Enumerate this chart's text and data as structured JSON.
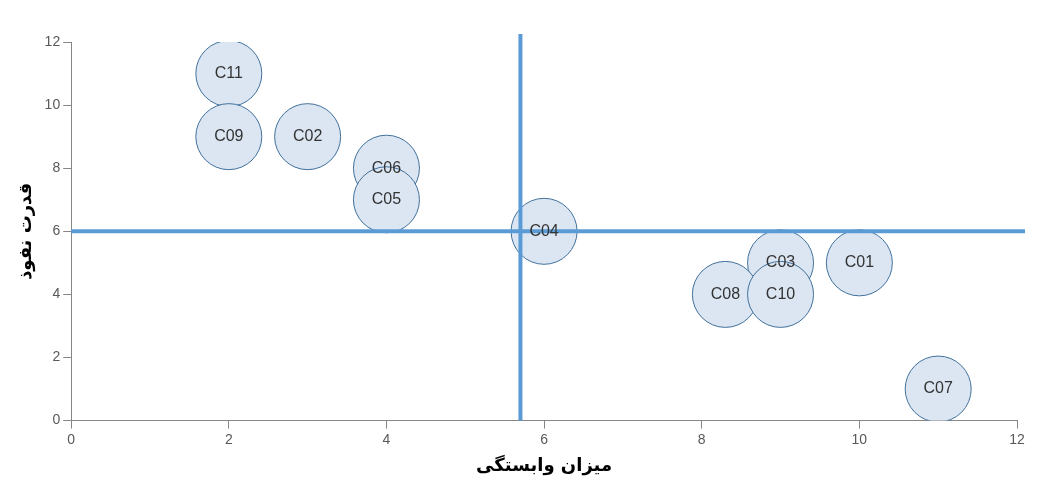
{
  "chart_data": {
    "type": "scatter",
    "xlabel": "میزان وابستگی",
    "ylabel": "قدرت نفوذ",
    "series": [
      {
        "color": "#dce6f2",
        "x": [
          2,
          2,
          3,
          4,
          4,
          6,
          9,
          10,
          8.3,
          9,
          11
        ],
        "values": [
          11,
          9,
          9,
          8,
          7,
          6,
          5,
          5,
          4,
          4,
          1
        ],
        "value_labels": [
          "C11",
          "C09",
          "C02",
          "C06",
          "C05",
          "C04",
          "C03",
          "C01",
          "C08",
          "C10",
          "C07"
        ]
      }
    ],
    "xlim": [
      0,
      12
    ],
    "xticks": [
      0,
      2,
      4,
      6,
      8,
      10,
      12
    ],
    "ylim": [
      0,
      12
    ],
    "yticks": [
      0,
      2,
      4,
      6,
      8,
      10,
      12
    ],
    "ref_lines": [
      {
        "axis": "x",
        "value": 5.7,
        "color": "#5b9bd5"
      },
      {
        "axis": "y",
        "value": 6,
        "color": "#5b9bd5"
      }
    ],
    "marker": "circle",
    "grid": false,
    "legend": false
  }
}
